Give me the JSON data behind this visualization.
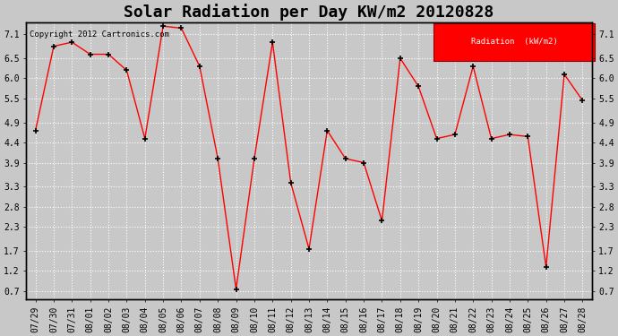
{
  "title": "Solar Radiation per Day KW/m2 20120828",
  "copyright": "Copyright 2012 Cartronics.com",
  "legend_label": "Radiation  (kW/m2)",
  "x_labels": [
    "07/29",
    "07/30",
    "07/31",
    "08/01",
    "08/02",
    "08/03",
    "08/04",
    "08/05",
    "08/06",
    "08/07",
    "08/08",
    "08/09",
    "08/10",
    "08/11",
    "08/12",
    "08/13",
    "08/14",
    "08/15",
    "08/16",
    "08/17",
    "08/18",
    "08/19",
    "08/20",
    "08/21",
    "08/22",
    "08/23",
    "08/24",
    "08/25",
    "08/26",
    "08/27",
    "08/28"
  ],
  "y_values": [
    4.7,
    6.8,
    6.9,
    6.6,
    6.6,
    6.2,
    4.5,
    7.3,
    7.25,
    6.3,
    4.0,
    0.75,
    4.0,
    6.9,
    3.4,
    1.75,
    4.7,
    4.0,
    3.9,
    2.45,
    6.5,
    5.8,
    4.5,
    4.6,
    6.3,
    4.5,
    4.6,
    4.55,
    1.3,
    6.1,
    5.45
  ],
  "y_ticks": [
    0.7,
    1.2,
    1.7,
    2.3,
    2.8,
    3.3,
    3.9,
    4.4,
    4.9,
    5.5,
    6.0,
    6.5,
    7.1
  ],
  "ylim": [
    0.5,
    7.4
  ],
  "line_color": "red",
  "marker_color": "black",
  "bg_color": "#c8c8c8",
  "plot_bg_color": "#c8c8c8",
  "grid_color": "#ffffff",
  "title_fontsize": 13,
  "tick_fontsize": 7,
  "legend_bg": "red",
  "legend_text_color": "white"
}
